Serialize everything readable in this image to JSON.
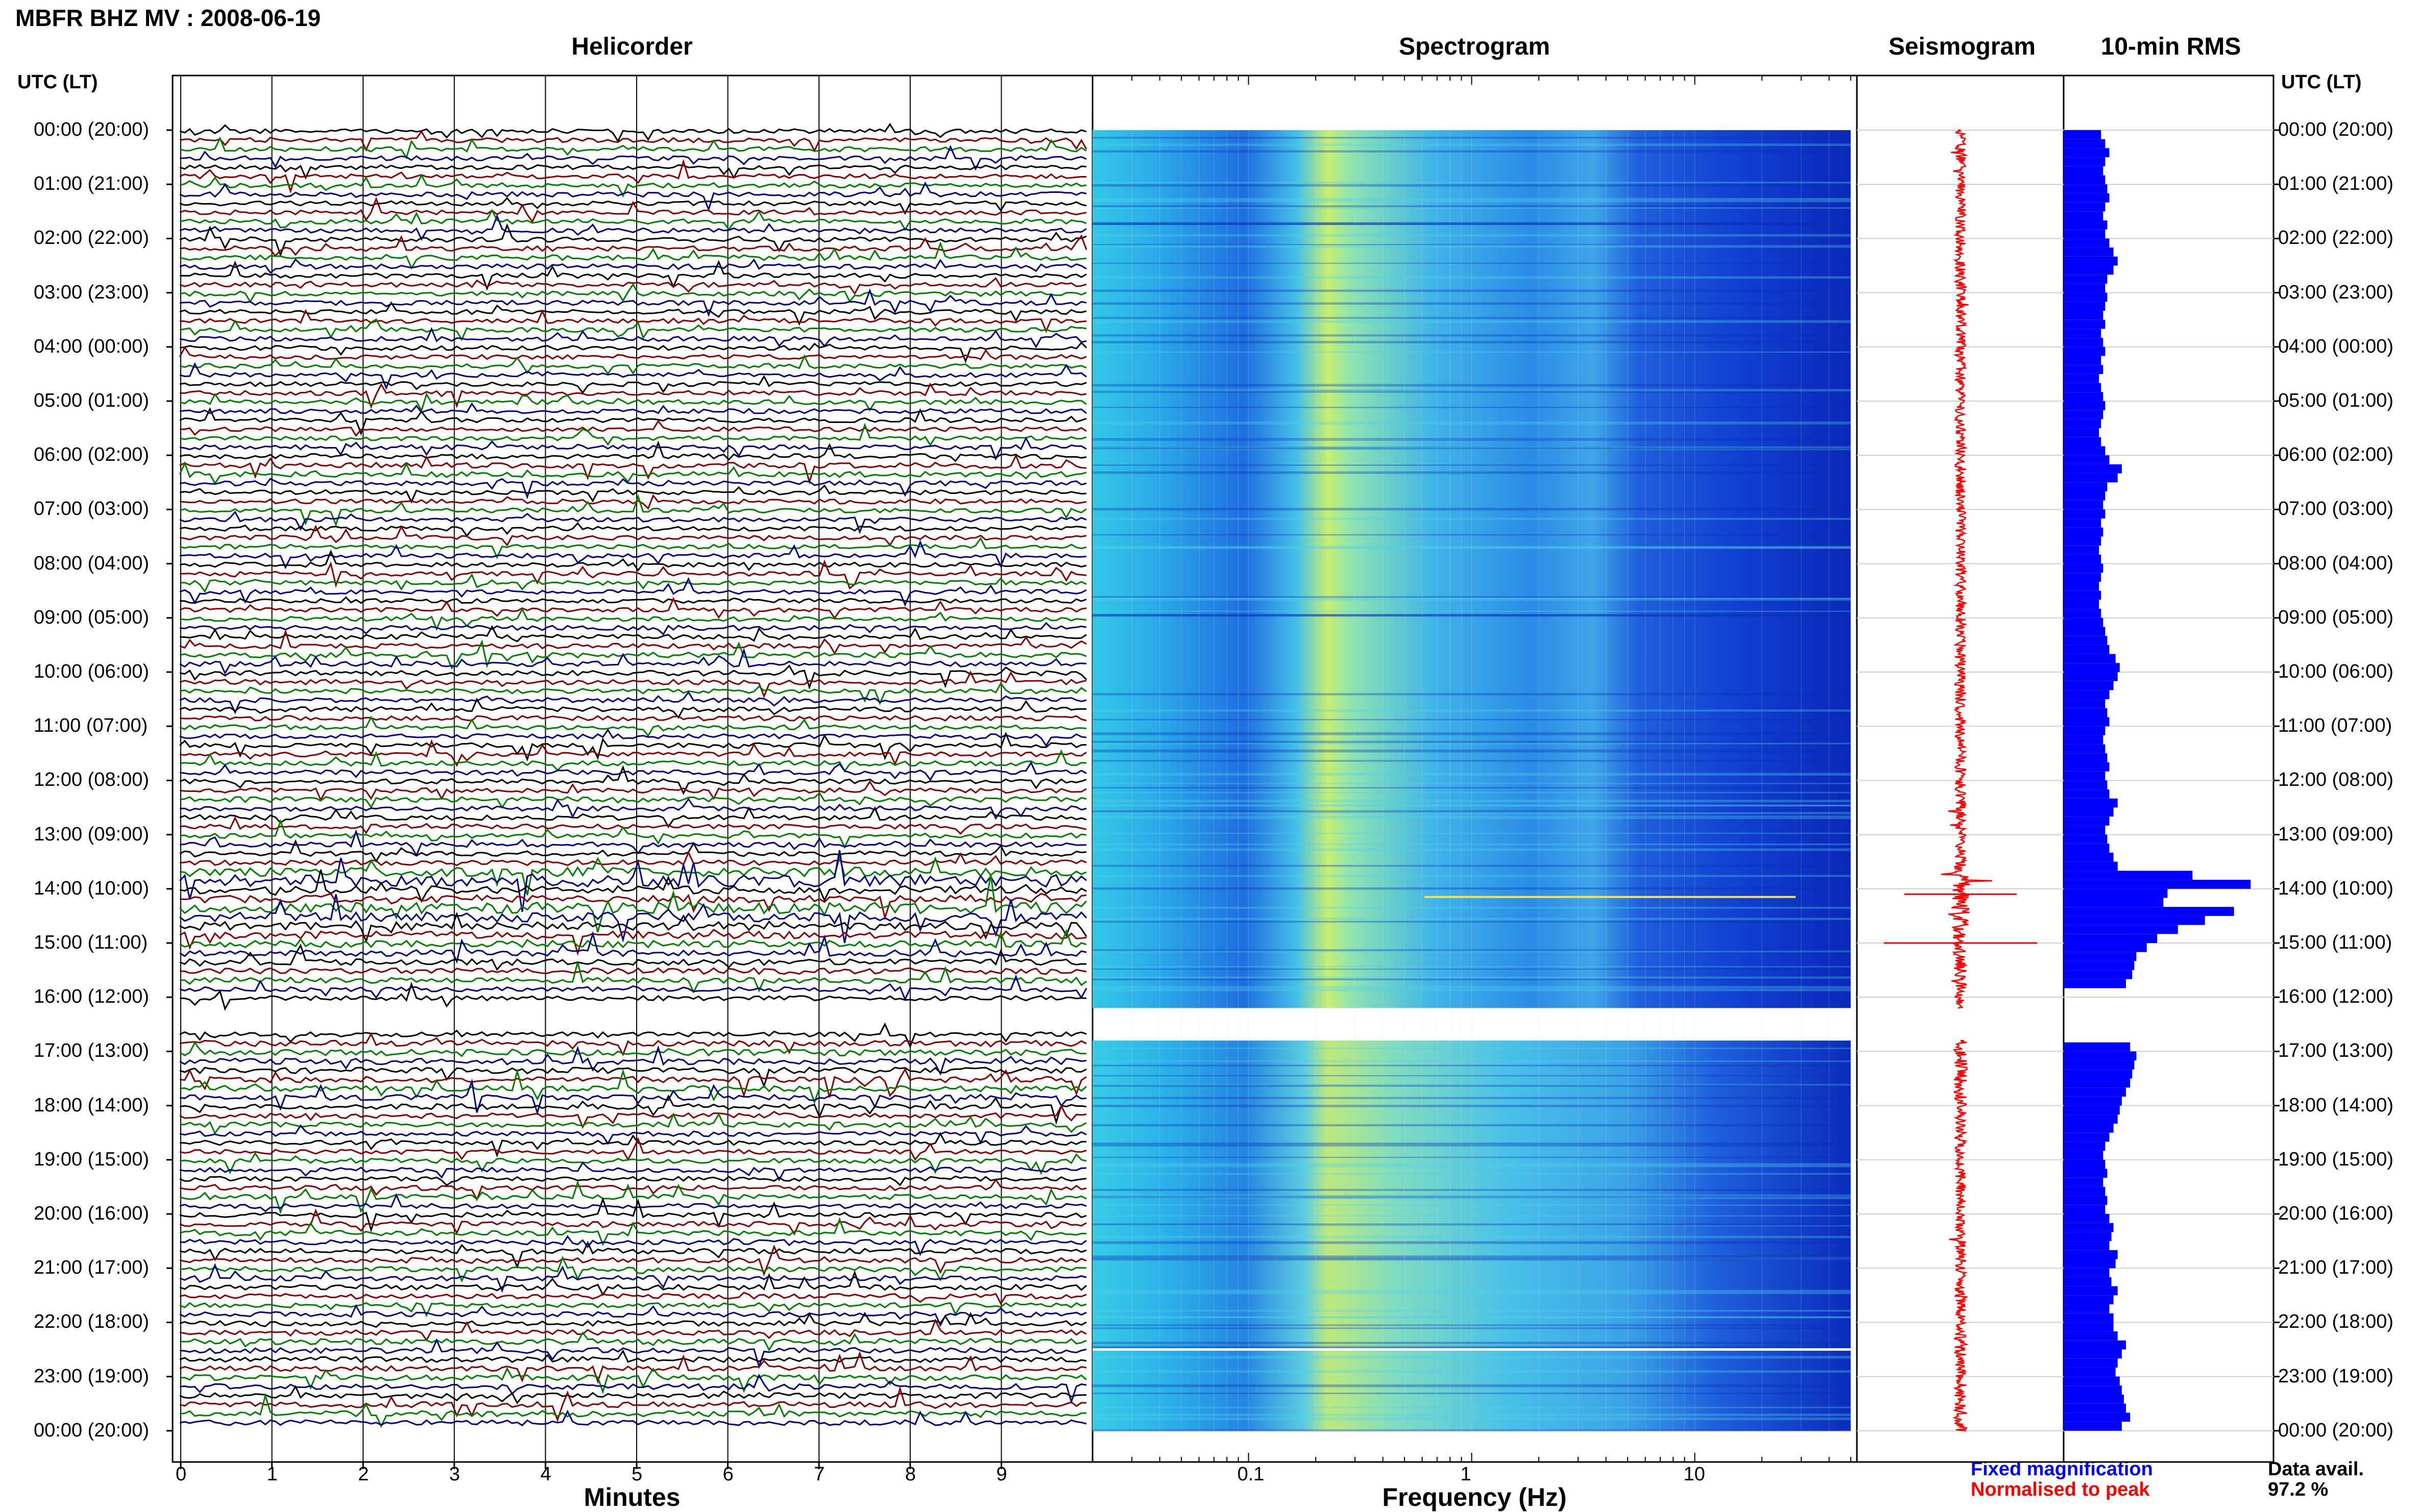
{
  "title": "MBFR BHZ MV : 2008-06-19",
  "panels": {
    "helicorder": "Helicorder",
    "spectrogram": "Spectrogram",
    "seismogram": "Seismogram",
    "rms": "10-min RMS"
  },
  "utc_label": "UTC (LT)",
  "hour_labels": [
    "00:00 (20:00)",
    "01:00 (21:00)",
    "02:00 (22:00)",
    "03:00 (23:00)",
    "04:00 (00:00)",
    "05:00 (01:00)",
    "06:00 (02:00)",
    "07:00 (03:00)",
    "08:00 (04:00)",
    "09:00 (05:00)",
    "10:00 (06:00)",
    "11:00 (07:00)",
    "12:00 (08:00)",
    "13:00 (09:00)",
    "14:00 (10:00)",
    "15:00 (11:00)",
    "16:00 (12:00)",
    "17:00 (13:00)",
    "18:00 (14:00)",
    "19:00 (15:00)",
    "20:00 (16:00)",
    "21:00 (17:00)",
    "22:00 (18:00)",
    "23:00 (19:00)",
    "00:00 (20:00)"
  ],
  "helicorder_axis": {
    "xlabel": "Minutes",
    "ticks": [
      "0",
      "1",
      "2",
      "3",
      "4",
      "5",
      "6",
      "7",
      "8",
      "9"
    ]
  },
  "spectrogram_axis": {
    "xlabel": "Frequency (Hz)",
    "ticks": [
      "0.1",
      "1",
      "10"
    ]
  },
  "legend": {
    "fixed": "Fixed magnification",
    "normalised": "Normalised to peak"
  },
  "data_availability": {
    "label": "Data avail.",
    "value": "97.2 %"
  },
  "colors": {
    "trace_cycle": [
      "#000000",
      "#8b0000",
      "#008000",
      "#00008b"
    ],
    "rms": "#0000ff",
    "seismogram": "#ff0000"
  },
  "chart_data": {
    "type": "bar",
    "title": "10-min RMS",
    "time_axis": "UTC hours 00:00 to 24:00, 10-minute bins",
    "gap_hours": [
      16.2,
      16.8
    ],
    "rms_relative": [
      0.18,
      0.2,
      0.22,
      0.2,
      0.19,
      0.2,
      0.21,
      0.22,
      0.2,
      0.19,
      0.21,
      0.2,
      0.22,
      0.24,
      0.26,
      0.24,
      0.21,
      0.2,
      0.21,
      0.2,
      0.19,
      0.2,
      0.18,
      0.19,
      0.2,
      0.18,
      0.19,
      0.17,
      0.18,
      0.19,
      0.2,
      0.19,
      0.18,
      0.17,
      0.18,
      0.2,
      0.22,
      0.28,
      0.26,
      0.21,
      0.2,
      0.19,
      0.2,
      0.18,
      0.19,
      0.18,
      0.17,
      0.18,
      0.19,
      0.18,
      0.17,
      0.18,
      0.17,
      0.18,
      0.19,
      0.2,
      0.21,
      0.22,
      0.25,
      0.27,
      0.26,
      0.24,
      0.22,
      0.2,
      0.21,
      0.22,
      0.2,
      0.19,
      0.2,
      0.21,
      0.22,
      0.2,
      0.21,
      0.22,
      0.26,
      0.24,
      0.22,
      0.2,
      0.21,
      0.22,
      0.24,
      0.26,
      0.62,
      0.9,
      0.5,
      0.48,
      0.82,
      0.68,
      0.55,
      0.45,
      0.4,
      0.35,
      0.34,
      0.33,
      0.3,
      0.0,
      0.0,
      0.0,
      0.0,
      0.0,
      0.0,
      0.32,
      0.35,
      0.34,
      0.33,
      0.32,
      0.3,
      0.28,
      0.27,
      0.26,
      0.24,
      0.22,
      0.2,
      0.19,
      0.2,
      0.21,
      0.19,
      0.2,
      0.21,
      0.2,
      0.22,
      0.24,
      0.23,
      0.22,
      0.26,
      0.25,
      0.22,
      0.23,
      0.26,
      0.24,
      0.22,
      0.24,
      0.24,
      0.26,
      0.3,
      0.28,
      0.26,
      0.25,
      0.27,
      0.28,
      0.29,
      0.3,
      0.32,
      0.28
    ]
  }
}
